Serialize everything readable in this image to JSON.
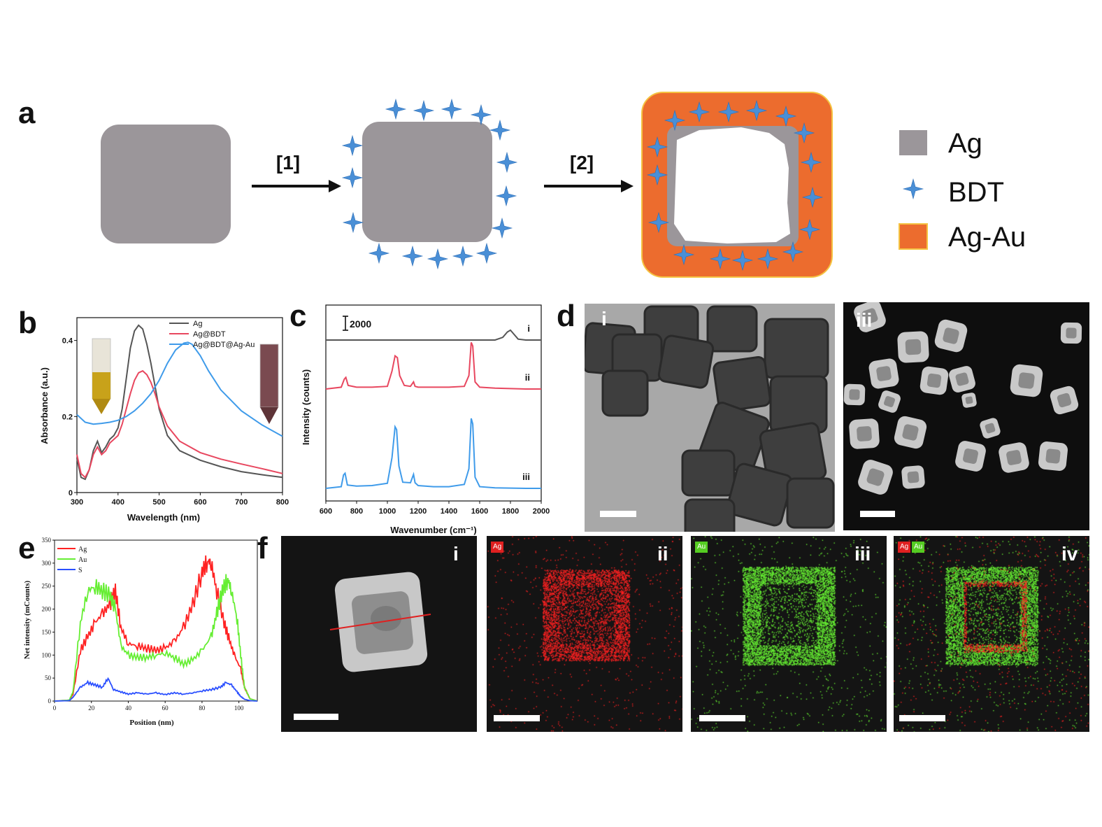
{
  "panels": {
    "a": "a",
    "b": "b",
    "c": "c",
    "d": "d",
    "e": "e",
    "f": "f"
  },
  "scheme": {
    "step1": "[1]",
    "step2": "[2]",
    "legend": [
      {
        "label": "Ag",
        "color": "#9b969a"
      },
      {
        "label": "BDT",
        "color": "#4a8fd6"
      },
      {
        "label": "Ag-Au",
        "color": "#ec6c2e"
      }
    ]
  },
  "colors": {
    "ag_gray": "#9b969a",
    "bdt_blue": "#4a8fd6",
    "agau_orange": "#ec6c2e",
    "agau_border": "#f5c342",
    "line_dark": "#555555",
    "line_red": "#e8475f",
    "line_blue": "#3f9bea",
    "eds_red": "#ff2222",
    "eds_green": "#66ee33",
    "eds_blue": "#2a4fff"
  },
  "chart_data": [
    {
      "id": "b",
      "type": "line",
      "xlabel": "Wavelength (nm)",
      "ylabel": "Absorbance (a.u.)",
      "xlim": [
        300,
        800
      ],
      "ylim": [
        0,
        0.46
      ],
      "xticks": [
        "300",
        "400",
        "500",
        "600",
        "700",
        "800"
      ],
      "yticks": [
        "0",
        "0.2",
        "0.4"
      ],
      "legend_position": "top-right",
      "series": [
        {
          "name": "Ag",
          "color": "#555555",
          "x": [
            300,
            310,
            320,
            330,
            340,
            350,
            360,
            370,
            380,
            390,
            400,
            410,
            420,
            430,
            440,
            450,
            460,
            470,
            480,
            490,
            500,
            520,
            550,
            600,
            650,
            700,
            750,
            800
          ],
          "y": [
            0.09,
            0.04,
            0.035,
            0.06,
            0.11,
            0.135,
            0.105,
            0.12,
            0.14,
            0.15,
            0.17,
            0.22,
            0.3,
            0.38,
            0.425,
            0.44,
            0.43,
            0.39,
            0.34,
            0.28,
            0.22,
            0.15,
            0.11,
            0.085,
            0.068,
            0.055,
            0.047,
            0.04
          ]
        },
        {
          "name": "Ag@BDT",
          "color": "#e8475f",
          "x": [
            300,
            310,
            320,
            330,
            340,
            350,
            360,
            370,
            380,
            390,
            400,
            410,
            420,
            430,
            440,
            450,
            460,
            470,
            480,
            490,
            500,
            520,
            550,
            600,
            650,
            700,
            750,
            800
          ],
          "y": [
            0.1,
            0.05,
            0.04,
            0.06,
            0.1,
            0.12,
            0.1,
            0.11,
            0.13,
            0.14,
            0.15,
            0.18,
            0.22,
            0.26,
            0.295,
            0.315,
            0.32,
            0.31,
            0.29,
            0.26,
            0.225,
            0.175,
            0.135,
            0.105,
            0.088,
            0.075,
            0.063,
            0.05
          ]
        },
        {
          "name": "Ag@BDT@Ag-Au",
          "color": "#3f9bea",
          "x": [
            300,
            320,
            340,
            360,
            380,
            400,
            420,
            440,
            460,
            480,
            500,
            520,
            540,
            560,
            570,
            580,
            600,
            620,
            650,
            700,
            750,
            800
          ],
          "y": [
            0.205,
            0.185,
            0.18,
            0.182,
            0.185,
            0.19,
            0.2,
            0.215,
            0.235,
            0.26,
            0.295,
            0.34,
            0.375,
            0.393,
            0.395,
            0.39,
            0.36,
            0.32,
            0.27,
            0.215,
            0.178,
            0.148
          ]
        }
      ]
    },
    {
      "id": "c",
      "type": "line",
      "xlabel": "Wavenumber (cm⁻¹)",
      "ylabel": "Intensity (counts)",
      "xlim": [
        600,
        2000
      ],
      "xticks": [
        "600",
        "800",
        "1000",
        "1200",
        "1400",
        "1600",
        "1800",
        "2000"
      ],
      "scale_bar_label": "2000",
      "series": [
        {
          "name": "i",
          "color": "#555555",
          "x": [
            600,
            700,
            800,
            900,
            1000,
            1100,
            1200,
            1300,
            1400,
            1500,
            1600,
            1700,
            1750,
            1780,
            1800,
            1820,
            1850,
            1900,
            2000
          ],
          "y": [
            0,
            0,
            0,
            0,
            0,
            0,
            0,
            0,
            0,
            0,
            0,
            0,
            300,
            900,
            1100,
            700,
            100,
            0,
            0
          ]
        },
        {
          "name": "ii",
          "color": "#e8475f",
          "x": [
            600,
            700,
            720,
            730,
            745,
            800,
            900,
            1000,
            1030,
            1050,
            1065,
            1080,
            1110,
            1150,
            1170,
            1180,
            1200,
            1300,
            1400,
            1500,
            1530,
            1545,
            1555,
            1570,
            1600,
            1700,
            1800,
            1900,
            2000
          ],
          "y": [
            0,
            200,
            1100,
            1300,
            400,
            200,
            200,
            300,
            2000,
            3700,
            3500,
            1500,
            400,
            300,
            800,
            300,
            200,
            200,
            200,
            300,
            1500,
            5200,
            4800,
            800,
            200,
            100,
            50,
            0,
            0
          ]
        },
        {
          "name": "iii",
          "color": "#3f9bea",
          "x": [
            600,
            700,
            715,
            725,
            740,
            800,
            900,
            1000,
            1030,
            1050,
            1060,
            1075,
            1100,
            1150,
            1170,
            1180,
            1200,
            1300,
            1400,
            1500,
            1530,
            1545,
            1555,
            1570,
            1600,
            1700,
            1800,
            1900,
            2000
          ],
          "y": [
            0,
            300,
            2400,
            2700,
            600,
            400,
            500,
            900,
            5500,
            11000,
            10500,
            4000,
            1100,
            1000,
            2500,
            1000,
            500,
            300,
            300,
            700,
            3500,
            12500,
            11500,
            2000,
            300,
            100,
            50,
            0,
            0
          ]
        }
      ]
    },
    {
      "id": "e",
      "type": "line",
      "xlabel": "Position (nm)",
      "ylabel": "Net intensity (mCounts)",
      "xlim": [
        0,
        110
      ],
      "ylim": [
        0,
        350
      ],
      "xticks": [
        "0",
        "20",
        "40",
        "60",
        "80",
        "100"
      ],
      "yticks": [
        "0",
        "50",
        "100",
        "150",
        "200",
        "250",
        "300",
        "350"
      ],
      "legend_position": "top-left",
      "series": [
        {
          "name": "Ag",
          "color": "#ff2222",
          "x": [
            0,
            8,
            10,
            14,
            18,
            22,
            26,
            30,
            33,
            36,
            40,
            45,
            50,
            55,
            60,
            65,
            70,
            75,
            80,
            83,
            85,
            88,
            92,
            95,
            98,
            101,
            103,
            106,
            110
          ],
          "y": [
            0,
            2,
            15,
            110,
            140,
            170,
            190,
            210,
            240,
            160,
            125,
            120,
            115,
            110,
            115,
            130,
            160,
            210,
            280,
            305,
            300,
            240,
            170,
            130,
            95,
            70,
            30,
            5,
            0
          ]
        },
        {
          "name": "Au",
          "color": "#66ee33",
          "x": [
            0,
            8,
            10,
            14,
            18,
            22,
            26,
            30,
            33,
            36,
            40,
            45,
            50,
            55,
            60,
            65,
            70,
            75,
            80,
            85,
            88,
            91,
            94,
            96,
            99,
            101,
            103,
            106,
            110
          ],
          "y": [
            0,
            2,
            20,
            170,
            240,
            250,
            240,
            230,
            200,
            120,
            100,
            95,
            95,
            100,
            105,
            95,
            80,
            90,
            110,
            140,
            190,
            240,
            265,
            240,
            180,
            100,
            30,
            5,
            0
          ]
        },
        {
          "name": "S",
          "color": "#2a4fff",
          "x": [
            0,
            8,
            10,
            14,
            18,
            22,
            26,
            29,
            32,
            36,
            40,
            45,
            50,
            55,
            60,
            65,
            70,
            75,
            80,
            85,
            90,
            93,
            96,
            99,
            101,
            103,
            106,
            110
          ],
          "y": [
            0,
            1,
            8,
            30,
            40,
            35,
            30,
            50,
            25,
            20,
            15,
            18,
            15,
            18,
            14,
            18,
            15,
            18,
            22,
            25,
            30,
            40,
            35,
            20,
            10,
            4,
            1,
            0
          ]
        }
      ]
    }
  ],
  "tem": {
    "d_i_label": "i",
    "d_iii_label": "iii",
    "f_labels": [
      "i",
      "ii",
      "iii",
      "iv"
    ],
    "f_chips": {
      "ii": [
        "Ag"
      ],
      "iii": [
        "Au"
      ],
      "iv": [
        "Ag",
        "Au"
      ]
    }
  }
}
